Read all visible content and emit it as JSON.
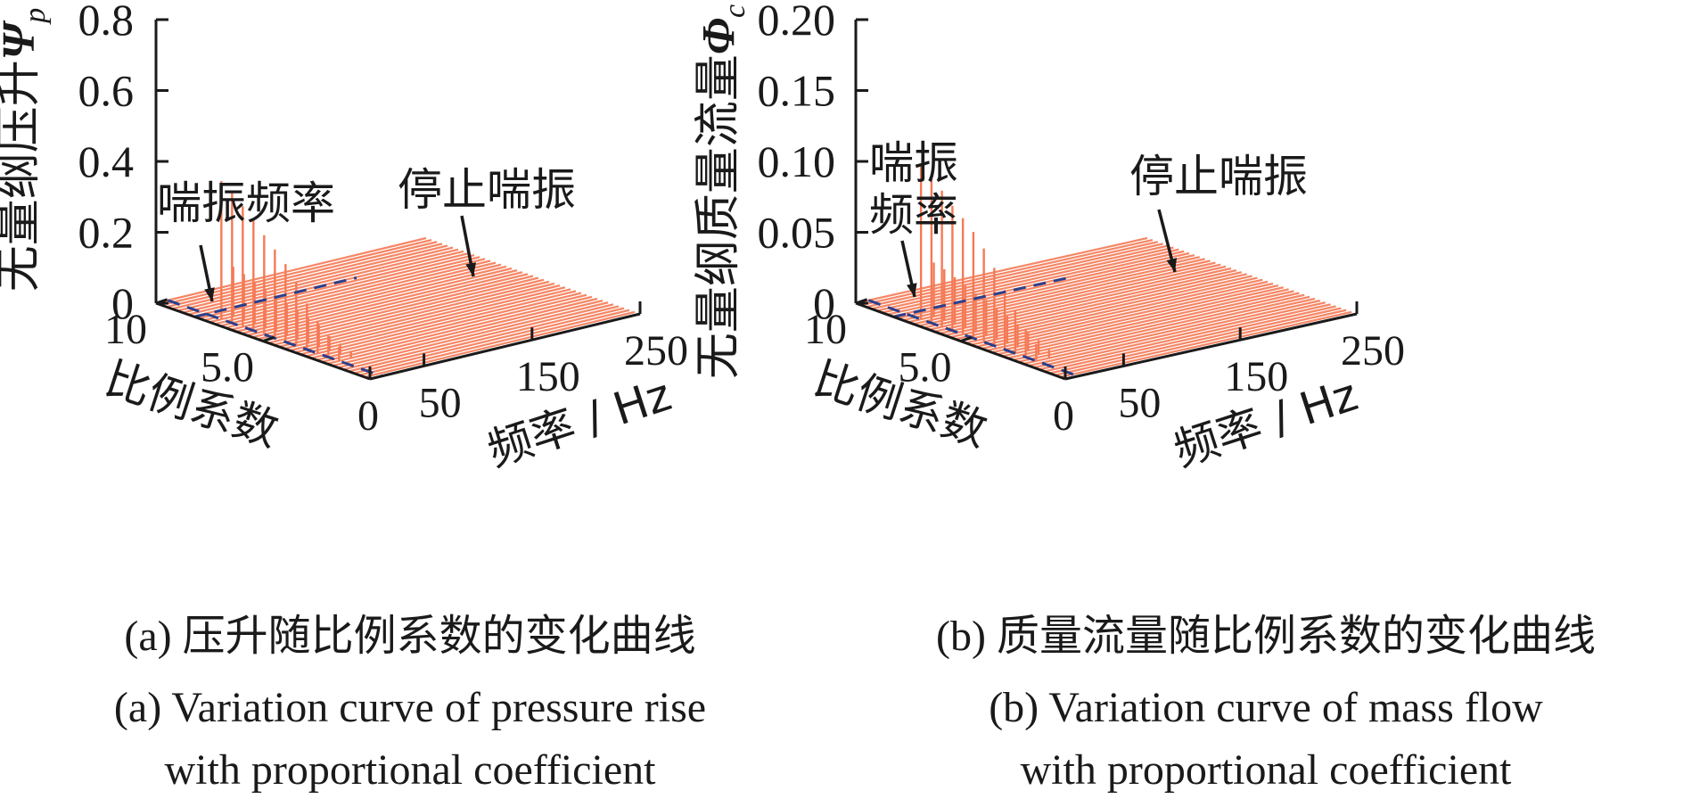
{
  "chart_data": [
    {
      "type": "3d-waterfall-spectrum",
      "title": "",
      "ylabel": "无量纲压升",
      "ylabel_symbol": "Ψ",
      "ylabel_subscript": "p",
      "xlabel": "频率 / Hz",
      "zlabel": "比例系数",
      "y_ticks": [
        "0",
        "0.2",
        "0.4",
        "0.6",
        "0.8"
      ],
      "ylim": [
        0,
        0.8
      ],
      "x_ticks": [
        "0",
        "50",
        "150",
        "250"
      ],
      "xlim": [
        0,
        250
      ],
      "z_ticks": [
        "0",
        "5.0",
        "10"
      ],
      "zlim": [
        0,
        10
      ],
      "annotations": [
        "喘振频率",
        "停止喘振"
      ],
      "series_color": "#f47a55",
      "marker_color": "#2b3f8c",
      "peaks": [
        {
          "k": 2.0,
          "f": 11,
          "y": 0.04
        },
        {
          "k": 2.0,
          "f": 22,
          "y": 0.02
        },
        {
          "k": 2.5,
          "f": 11,
          "y": 0.06
        },
        {
          "k": 2.5,
          "f": 22,
          "y": 0.03
        },
        {
          "k": 3.0,
          "f": 11,
          "y": 0.09
        },
        {
          "k": 3.0,
          "f": 22,
          "y": 0.04
        },
        {
          "k": 3.5,
          "f": 11,
          "y": 0.13
        },
        {
          "k": 3.5,
          "f": 22,
          "y": 0.06
        },
        {
          "k": 4.0,
          "f": 11,
          "y": 0.18
        },
        {
          "k": 4.0,
          "f": 22,
          "y": 0.07
        },
        {
          "k": 4.5,
          "f": 11,
          "y": 0.22
        },
        {
          "k": 4.5,
          "f": 22,
          "y": 0.08
        },
        {
          "k": 5.0,
          "f": 11,
          "y": 0.25
        },
        {
          "k": 5.0,
          "f": 22,
          "y": 0.09
        },
        {
          "k": 5.5,
          "f": 11,
          "y": 0.28
        },
        {
          "k": 5.5,
          "f": 22,
          "y": 0.1
        },
        {
          "k": 6.0,
          "f": 11,
          "y": 0.31
        },
        {
          "k": 6.0,
          "f": 22,
          "y": 0.11
        },
        {
          "k": 6.5,
          "f": 11,
          "y": 0.34
        },
        {
          "k": 6.5,
          "f": 22,
          "y": 0.12
        },
        {
          "k": 7.0,
          "f": 11,
          "y": 0.37
        },
        {
          "k": 7.0,
          "f": 22,
          "y": 0.13
        },
        {
          "k": 7.5,
          "f": 11,
          "y": 0.39
        },
        {
          "k": 7.5,
          "f": 22,
          "y": 0.14
        }
      ],
      "caption_cn": "(a) 压升随比例系数的变化曲线",
      "caption_en_1": "(a) Variation curve of pressure rise",
      "caption_en_2": "with proportional coefficient"
    },
    {
      "type": "3d-waterfall-spectrum",
      "title": "",
      "ylabel": "无量纲质量流量",
      "ylabel_symbol": "Φ",
      "ylabel_subscript": "c",
      "xlabel": "频率 / Hz",
      "zlabel": "比例系数",
      "y_ticks": [
        "0",
        "0.05",
        "0.10",
        "0.15",
        "0.20"
      ],
      "ylim": [
        0,
        0.2
      ],
      "x_ticks": [
        "0",
        "50",
        "150",
        "250"
      ],
      "xlim": [
        0,
        250
      ],
      "z_ticks": [
        "0",
        "5.0",
        "10"
      ],
      "zlim": [
        0,
        10
      ],
      "annotations": [
        "喘振\n频率",
        "停止喘振"
      ],
      "series_color": "#f47a55",
      "marker_color": "#2b3f8c",
      "peaks": [
        {
          "k": 2.0,
          "f": 11,
          "y": 0.012
        },
        {
          "k": 2.0,
          "f": 22,
          "y": 0.006
        },
        {
          "k": 2.5,
          "f": 11,
          "y": 0.02
        },
        {
          "k": 2.5,
          "f": 22,
          "y": 0.01
        },
        {
          "k": 3.0,
          "f": 11,
          "y": 0.03
        },
        {
          "k": 3.0,
          "f": 22,
          "y": 0.013
        },
        {
          "k": 3.5,
          "f": 11,
          "y": 0.042
        },
        {
          "k": 3.5,
          "f": 22,
          "y": 0.016
        },
        {
          "k": 4.0,
          "f": 11,
          "y": 0.055
        },
        {
          "k": 4.0,
          "f": 22,
          "y": 0.019
        },
        {
          "k": 4.5,
          "f": 11,
          "y": 0.066
        },
        {
          "k": 4.5,
          "f": 22,
          "y": 0.022
        },
        {
          "k": 5.0,
          "f": 11,
          "y": 0.075
        },
        {
          "k": 5.0,
          "f": 22,
          "y": 0.025
        },
        {
          "k": 5.5,
          "f": 11,
          "y": 0.082
        },
        {
          "k": 5.5,
          "f": 22,
          "y": 0.027
        },
        {
          "k": 6.0,
          "f": 11,
          "y": 0.088
        },
        {
          "k": 6.0,
          "f": 22,
          "y": 0.03
        },
        {
          "k": 6.5,
          "f": 11,
          "y": 0.096
        },
        {
          "k": 6.5,
          "f": 22,
          "y": 0.033
        },
        {
          "k": 7.0,
          "f": 11,
          "y": 0.104
        },
        {
          "k": 7.0,
          "f": 22,
          "y": 0.036
        },
        {
          "k": 7.5,
          "f": 11,
          "y": 0.108
        },
        {
          "k": 7.5,
          "f": 22,
          "y": 0.038
        }
      ],
      "caption_cn": "(b) 质量流量随比例系数的变化曲线",
      "caption_en_1": "(b) Variation curve of mass flow",
      "caption_en_2": "with proportional coefficient"
    }
  ]
}
